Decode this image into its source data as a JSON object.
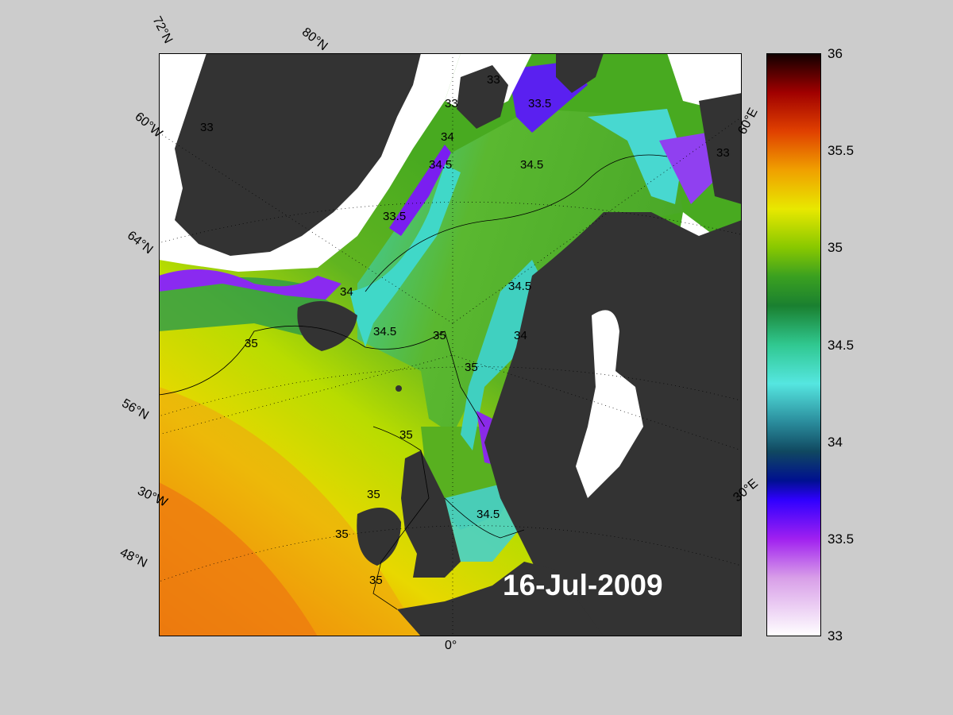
{
  "map": {
    "date": "16-Jul-2009",
    "variable_range": [
      33,
      36
    ],
    "graticule_labels": {
      "lat_72": "72°N",
      "lat_80": "80°N",
      "lat_64": "64°N",
      "lat_56": "56°N",
      "lat_48": "48°N",
      "lon_60w": "60°W",
      "lon_30w": "30°W",
      "lon_0": "0°",
      "lon_30e": "30°E",
      "lon_60e": "60°E"
    },
    "contour_labels": [
      "33",
      "33",
      "33",
      "33.5",
      "34",
      "34.5",
      "34.5",
      "34.5",
      "35",
      "35",
      "35",
      "35",
      "35",
      "35",
      "35",
      "34",
      "34",
      "34.5",
      "34.5",
      "33.5",
      "33"
    ],
    "colors": {
      "background": "#cccccc",
      "land": "#333333",
      "ice": "#ffffff",
      "gray_lake": "#777777"
    }
  },
  "colorbar": {
    "ticks": [
      "36",
      "35.5",
      "35",
      "34.5",
      "34",
      "33.5",
      "33"
    ],
    "stops": [
      {
        "value": 33.0,
        "color": "#ffffff"
      },
      {
        "value": 33.3,
        "color": "#d89ee8"
      },
      {
        "value": 33.5,
        "color": "#a020f0"
      },
      {
        "value": 33.7,
        "color": "#3000ff"
      },
      {
        "value": 33.8,
        "color": "#001090"
      },
      {
        "value": 33.95,
        "color": "#104860"
      },
      {
        "value": 34.1,
        "color": "#2a8c9c"
      },
      {
        "value": 34.3,
        "color": "#55e6e0"
      },
      {
        "value": 34.5,
        "color": "#30c890"
      },
      {
        "value": 34.7,
        "color": "#1a8030"
      },
      {
        "value": 34.85,
        "color": "#3aa020"
      },
      {
        "value": 35.0,
        "color": "#88c800"
      },
      {
        "value": 35.2,
        "color": "#e8e800"
      },
      {
        "value": 35.4,
        "color": "#f0a000"
      },
      {
        "value": 35.6,
        "color": "#e04000"
      },
      {
        "value": 35.8,
        "color": "#a00000"
      },
      {
        "value": 36.0,
        "color": "#100000"
      }
    ]
  }
}
